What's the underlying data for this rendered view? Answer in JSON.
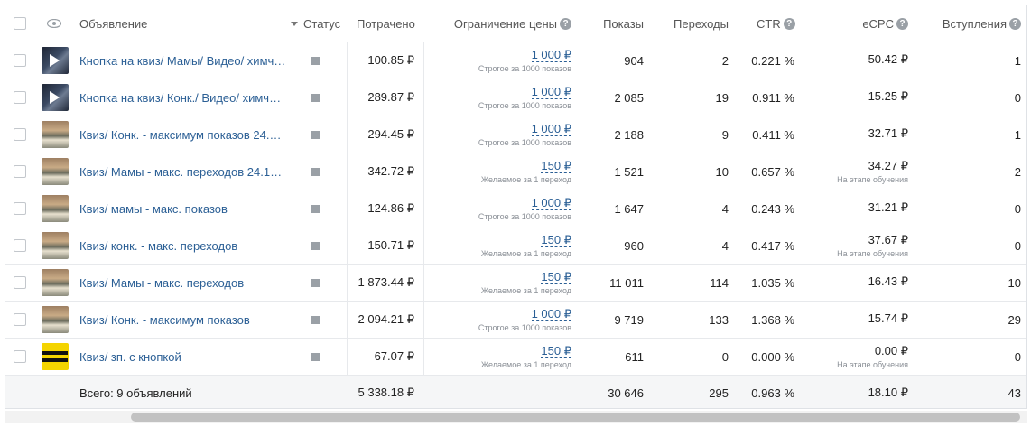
{
  "columns": {
    "ad": "Объявление",
    "status": "Статус",
    "spent": "Потрачено",
    "price_limit": "Ограничение цены",
    "impressions": "Показы",
    "clicks": "Переходы",
    "ctr": "CTR",
    "ecpc": "eCPC",
    "joins": "Вступления"
  },
  "help_glyph": "?",
  "rows": [
    {
      "thumb": "video",
      "name": "Кнопка на квиз/ Мамы/ Видео/ химч…",
      "spent": "100.85 ₽",
      "limit": "1 000 ₽",
      "limit_note": "Строгое за 1000 показов",
      "impressions": "904",
      "clicks": "2",
      "ctr": "0.221 %",
      "ecpc": "50.42 ₽",
      "ecpc_note": "",
      "joins": "1"
    },
    {
      "thumb": "video",
      "name": "Кнопка на квиз/ Конк./ Видео/ химч…",
      "spent": "289.87 ₽",
      "limit": "1 000 ₽",
      "limit_note": "Строгое за 1000 показов",
      "impressions": "2 085",
      "clicks": "19",
      "ctr": "0.911 %",
      "ecpc": "15.25 ₽",
      "ecpc_note": "",
      "joins": "0"
    },
    {
      "thumb": "photo",
      "name": "Квиз/ Конк. - максимум показов 24.…",
      "spent": "294.45 ₽",
      "limit": "1 000 ₽",
      "limit_note": "Строгое за 1000 показов",
      "impressions": "2 188",
      "clicks": "9",
      "ctr": "0.411 %",
      "ecpc": "32.71 ₽",
      "ecpc_note": "",
      "joins": "1"
    },
    {
      "thumb": "photo",
      "name": "Квиз/ Мамы - макс. переходов 24.1…",
      "spent": "342.72 ₽",
      "limit": "150 ₽",
      "limit_note": "Желаемое за 1 переход",
      "impressions": "1 521",
      "clicks": "10",
      "ctr": "0.657 %",
      "ecpc": "34.27 ₽",
      "ecpc_note": "На этапе обучения",
      "joins": "2"
    },
    {
      "thumb": "photo",
      "name": "Квиз/ мамы - макс. показов",
      "spent": "124.86 ₽",
      "limit": "1 000 ₽",
      "limit_note": "Строгое за 1000 показов",
      "impressions": "1 647",
      "clicks": "4",
      "ctr": "0.243 %",
      "ecpc": "31.21 ₽",
      "ecpc_note": "",
      "joins": "0"
    },
    {
      "thumb": "photo",
      "name": "Квиз/ конк. - макс. переходов",
      "spent": "150.71 ₽",
      "limit": "150 ₽",
      "limit_note": "Желаемое за 1 переход",
      "impressions": "960",
      "clicks": "4",
      "ctr": "0.417 %",
      "ecpc": "37.67 ₽",
      "ecpc_note": "На этапе обучения",
      "joins": "0"
    },
    {
      "thumb": "photo",
      "name": "Квиз/ Мамы - макс. переходов",
      "spent": "1 873.44 ₽",
      "limit": "150 ₽",
      "limit_note": "Желаемое за 1 переход",
      "impressions": "11 011",
      "clicks": "114",
      "ctr": "1.035 %",
      "ecpc": "16.43 ₽",
      "ecpc_note": "",
      "joins": "10"
    },
    {
      "thumb": "photo",
      "name": "Квиз/ Конк. - максимум показов",
      "spent": "2 094.21 ₽",
      "limit": "1 000 ₽",
      "limit_note": "Строгое за 1000 показов",
      "impressions": "9 719",
      "clicks": "133",
      "ctr": "1.368 %",
      "ecpc": "15.74 ₽",
      "ecpc_note": "",
      "joins": "29"
    },
    {
      "thumb": "yellow",
      "name": "Квиз/ зп. с кнопкой",
      "spent": "67.07 ₽",
      "limit": "150 ₽",
      "limit_note": "Желаемое за 1 переход",
      "impressions": "611",
      "clicks": "0",
      "ctr": "0.000 %",
      "ecpc": "0.00 ₽",
      "ecpc_note": "На этапе обучения",
      "joins": "0"
    }
  ],
  "totals": {
    "label": "Всего: 9 объявлений",
    "spent": "5 338.18 ₽",
    "impressions": "30 646",
    "clicks": "295",
    "ctr": "0.963 %",
    "ecpc": "18.10 ₽",
    "joins": "43"
  },
  "colors": {
    "link": "#2b5f95",
    "status_square": "#9aa0a6",
    "footer_bg": "#f5f6f7"
  },
  "icons": {
    "visibility": "eye-icon",
    "sort": "sort-desc-icon",
    "help": "question-icon",
    "status": "status-square-icon"
  }
}
